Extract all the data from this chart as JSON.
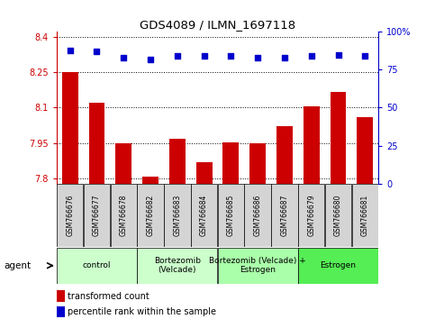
{
  "title": "GDS4089 / ILMN_1697118",
  "samples": [
    "GSM766676",
    "GSM766677",
    "GSM766678",
    "GSM766682",
    "GSM766683",
    "GSM766684",
    "GSM766685",
    "GSM766686",
    "GSM766687",
    "GSM766679",
    "GSM766680",
    "GSM766681"
  ],
  "transformed_counts": [
    8.25,
    8.12,
    7.95,
    7.81,
    7.97,
    7.87,
    7.955,
    7.95,
    8.02,
    8.105,
    8.165,
    8.06
  ],
  "percentile_ranks": [
    88,
    87,
    83,
    82,
    84,
    84,
    84,
    83,
    83,
    84,
    85,
    84
  ],
  "ylim_left": [
    7.78,
    8.42
  ],
  "ylim_right": [
    0,
    100
  ],
  "yticks_left": [
    7.8,
    7.95,
    8.1,
    8.25,
    8.4
  ],
  "yticks_right": [
    0,
    25,
    50,
    75,
    100
  ],
  "ytick_labels_left": [
    "7.8",
    "7.95",
    "8.1",
    "8.25",
    "8.4"
  ],
  "ytick_labels_right": [
    "0",
    "25",
    "50",
    "75",
    "100%"
  ],
  "groups": [
    {
      "label": "control",
      "start": 0,
      "end": 3,
      "color": "#ccffcc"
    },
    {
      "label": "Bortezomib\n(Velcade)",
      "start": 3,
      "end": 6,
      "color": "#ccffcc"
    },
    {
      "label": "Bortezomib (Velcade) +\nEstrogen",
      "start": 6,
      "end": 9,
      "color": "#aaffaa"
    },
    {
      "label": "Estrogen",
      "start": 9,
      "end": 12,
      "color": "#55ee55"
    }
  ],
  "bar_color": "#cc0000",
  "dot_color": "#0000cc",
  "background_color": "#ffffff",
  "legend_red_label": "transformed count",
  "legend_blue_label": "percentile rank within the sample",
  "agent_label": "agent",
  "tick_color_left": "#cc0000",
  "tick_color_right": "#0000cc",
  "bar_bottom": 7.78
}
